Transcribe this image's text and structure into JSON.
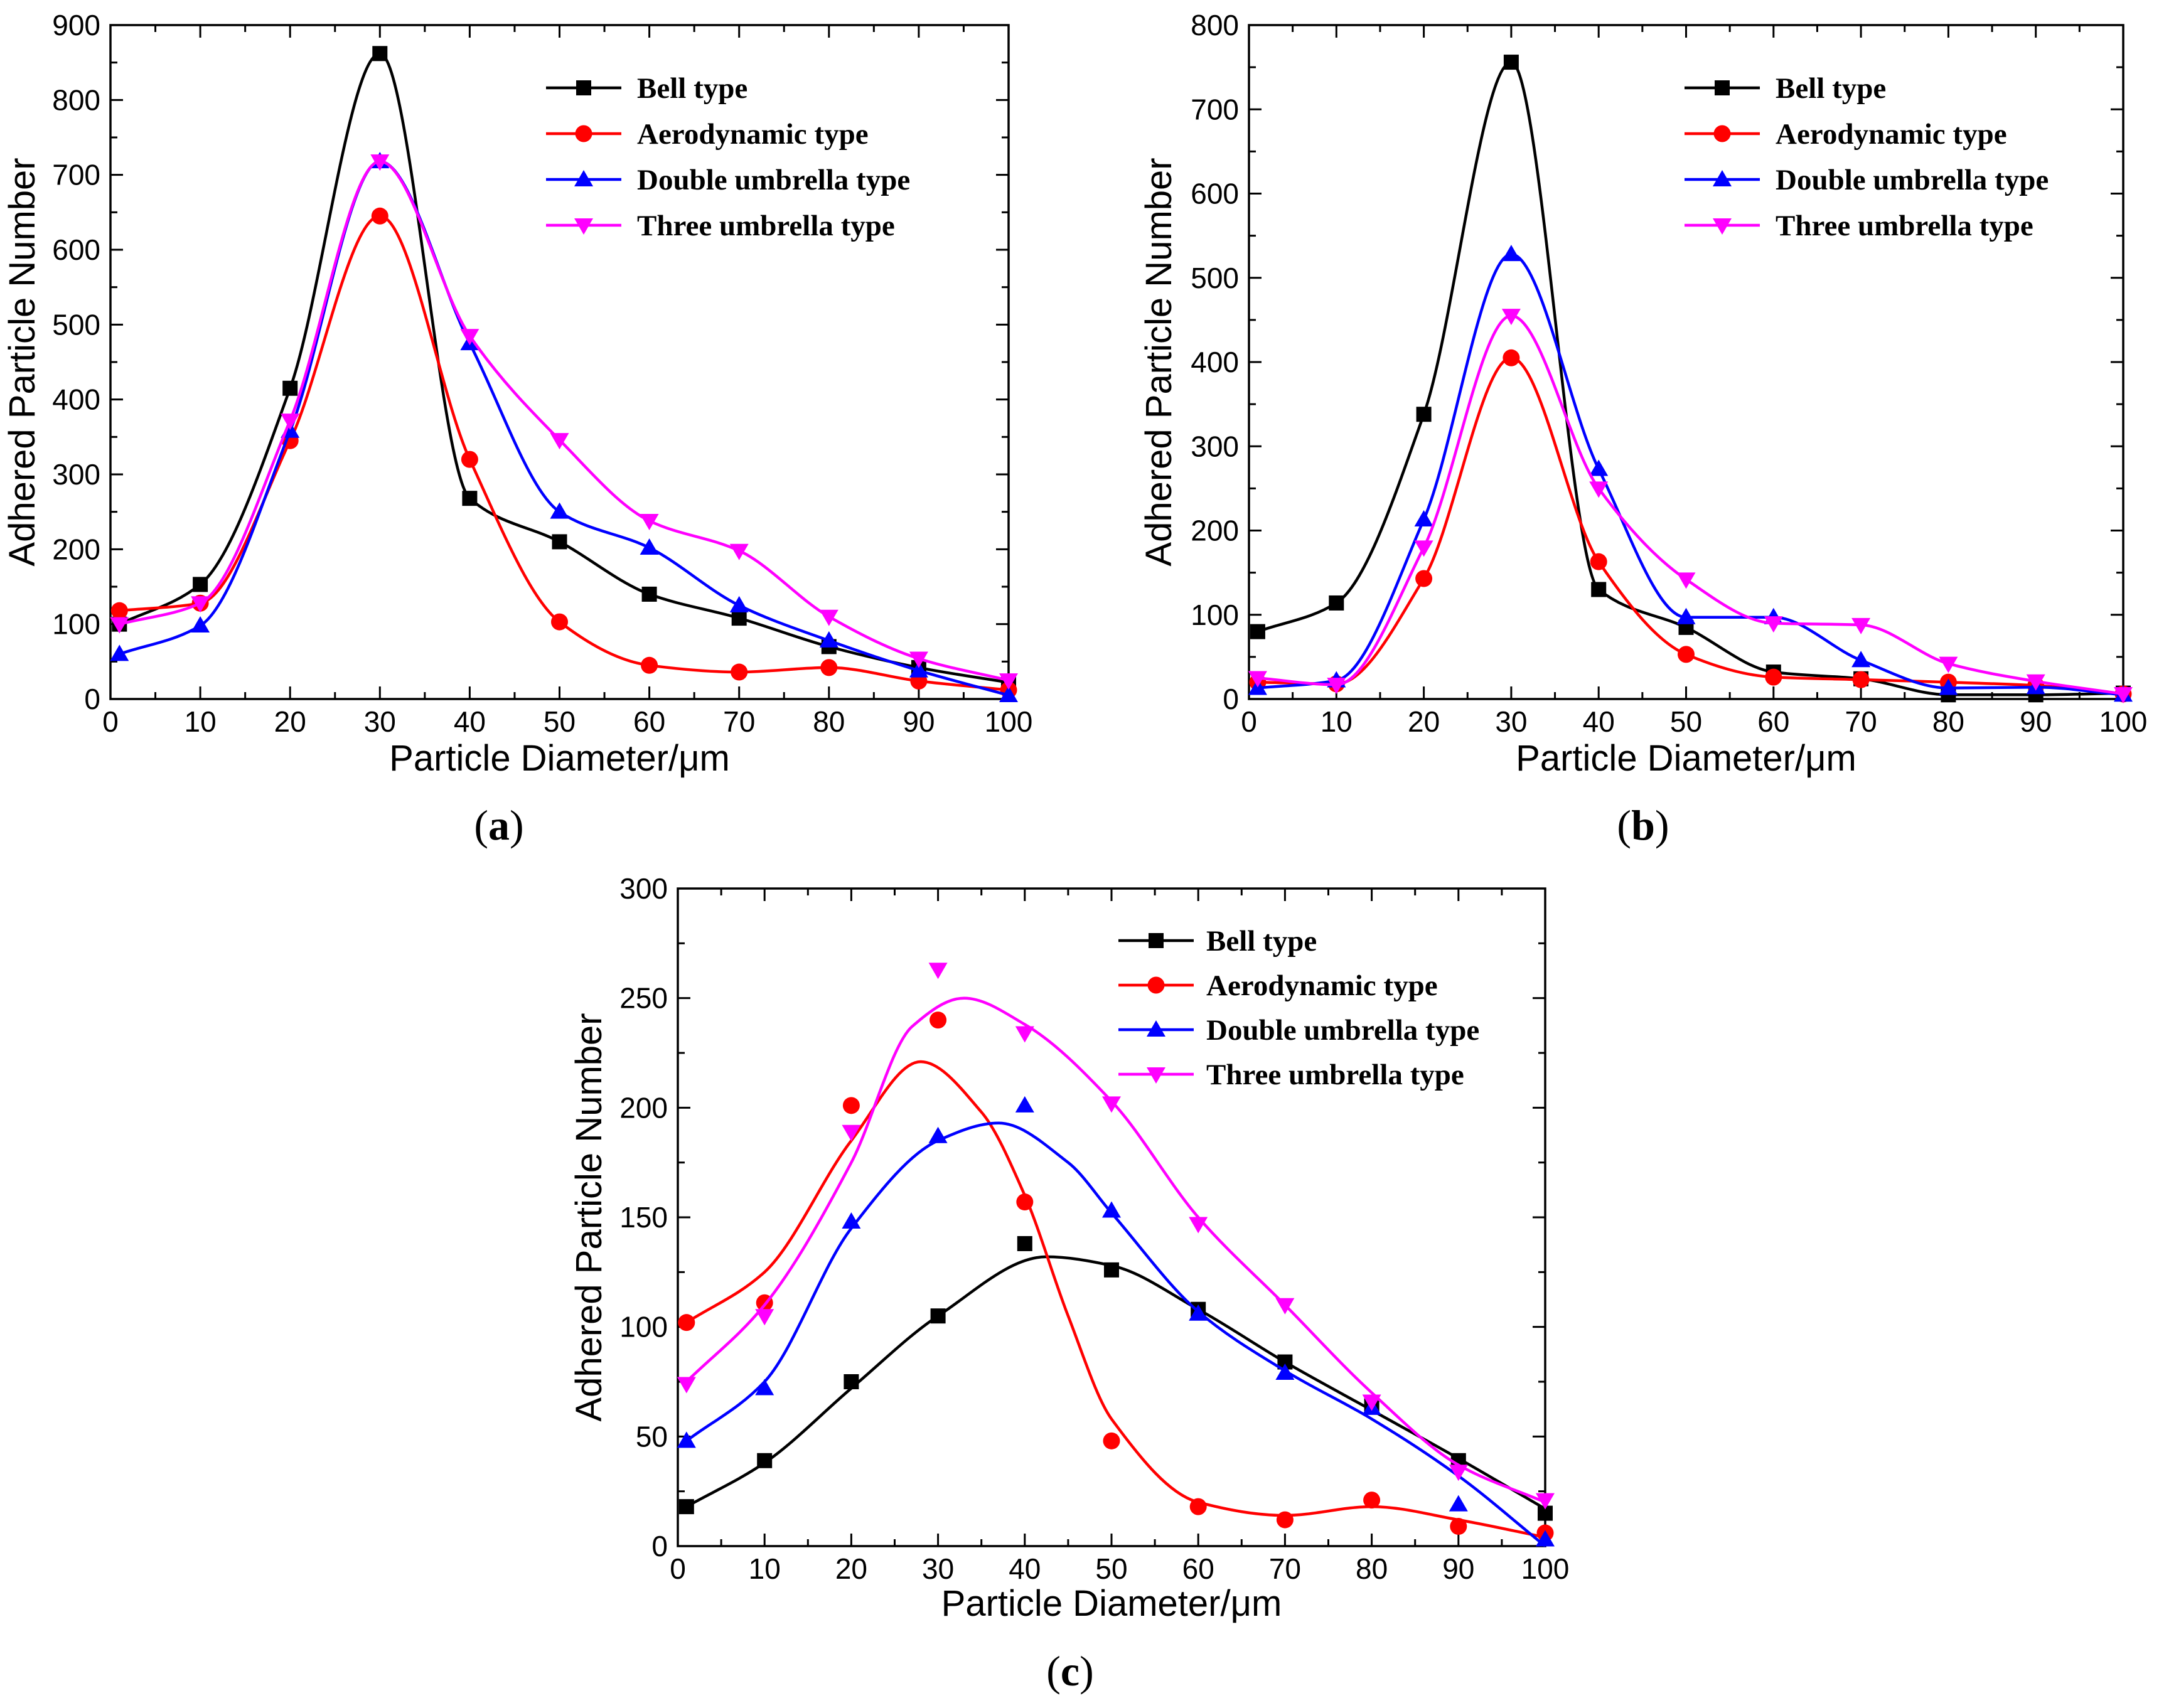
{
  "figure": {
    "colors": {
      "bell": "#000000",
      "aero": "#ff0000",
      "double": "#0000ff",
      "three": "#ff00ff"
    }
  },
  "chart_data": [
    {
      "panel": "a",
      "panel_label": {
        "open": "(",
        "letter": "a",
        "close": ")"
      },
      "type": "line",
      "smooth": true,
      "xlabel": "Particle Diameter/μm",
      "ylabel": "Adhered Particle Number",
      "xlim": [
        0,
        100
      ],
      "ylim": [
        0,
        900
      ],
      "xticks": [
        0,
        10,
        20,
        30,
        40,
        50,
        60,
        70,
        80,
        90,
        100
      ],
      "yticks": [
        0,
        100,
        200,
        300,
        400,
        500,
        600,
        700,
        800,
        900
      ],
      "legend_position": "top-right",
      "x": [
        1,
        10,
        20,
        30,
        40,
        50,
        60,
        70,
        80,
        90,
        100
      ],
      "series": [
        {
          "key": "bell",
          "name": "Bell type",
          "marker": "square",
          "values": [
            100,
            153,
            415,
            862,
            268,
            210,
            140,
            108,
            70,
            42,
            22
          ]
        },
        {
          "key": "aero",
          "name": "Aerodynamic type",
          "marker": "circle",
          "values": [
            118,
            128,
            345,
            645,
            320,
            103,
            45,
            36,
            42,
            24,
            12
          ]
        },
        {
          "key": "double",
          "name": "Double umbrella type",
          "marker": "triangle-up",
          "values": [
            60,
            98,
            358,
            718,
            475,
            250,
            202,
            125,
            78,
            38,
            5
          ]
        },
        {
          "key": "three",
          "name": "Three umbrella type",
          "marker": "triangle-down",
          "values": [
            100,
            128,
            372,
            718,
            485,
            346,
            238,
            198,
            110,
            54,
            25
          ]
        }
      ]
    },
    {
      "panel": "b",
      "panel_label": {
        "open": "(",
        "letter": "b",
        "close": ")"
      },
      "type": "line",
      "smooth": true,
      "xlabel": "Particle Diameter/μm",
      "ylabel": "Adhered Particle Number",
      "xlim": [
        0,
        100
      ],
      "ylim": [
        0,
        800
      ],
      "xticks": [
        0,
        10,
        20,
        30,
        40,
        50,
        60,
        70,
        80,
        90,
        100
      ],
      "yticks": [
        0,
        100,
        200,
        300,
        400,
        500,
        600,
        700,
        800
      ],
      "legend_position": "top-right",
      "x": [
        1,
        10,
        20,
        30,
        40,
        50,
        60,
        70,
        80,
        90,
        100
      ],
      "series": [
        {
          "key": "bell",
          "name": "Bell type",
          "marker": "square",
          "values": [
            80,
            114,
            338,
            756,
            130,
            85,
            32,
            24,
            5,
            5,
            7
          ]
        },
        {
          "key": "aero",
          "name": "Aerodynamic type",
          "marker": "circle",
          "values": [
            20,
            18,
            143,
            405,
            163,
            53,
            26,
            23,
            20,
            16,
            6
          ]
        },
        {
          "key": "double",
          "name": "Double umbrella type",
          "marker": "triangle-up",
          "values": [
            13,
            22,
            213,
            528,
            273,
            97,
            97,
            46,
            13,
            14,
            5
          ]
        },
        {
          "key": "three",
          "name": "Three umbrella type",
          "marker": "triangle-down",
          "values": [
            25,
            17,
            180,
            455,
            250,
            142,
            90,
            88,
            42,
            21,
            6
          ]
        }
      ]
    },
    {
      "panel": "c",
      "panel_label": {
        "open": "(",
        "letter": "c",
        "close": ")"
      },
      "type": "scatter",
      "fit": "smooth-curve",
      "xlabel": "Particle Diameter/μm",
      "ylabel": "Adhered Particle Number",
      "xlim": [
        0,
        100
      ],
      "ylim": [
        0,
        300
      ],
      "xticks": [
        0,
        10,
        20,
        30,
        40,
        50,
        60,
        70,
        80,
        90,
        100
      ],
      "yticks": [
        0,
        50,
        100,
        150,
        200,
        250,
        300
      ],
      "legend_position": "top-right",
      "x": [
        1,
        10,
        20,
        30,
        40,
        50,
        60,
        70,
        80,
        90,
        100
      ],
      "series": [
        {
          "key": "bell",
          "name": "Bell type",
          "marker": "square",
          "values": [
            18,
            39,
            75,
            105,
            138,
            126,
            108,
            84,
            64,
            39,
            15
          ],
          "fit_x": [
            1,
            10,
            20,
            30,
            42.5,
            50,
            60,
            70,
            80,
            90,
            100
          ],
          "fit_y": [
            18,
            38,
            72,
            105,
            132,
            128,
            108,
            84,
            62,
            40,
            17
          ]
        },
        {
          "key": "aero",
          "name": "Aerodynamic type",
          "marker": "circle",
          "values": [
            102,
            111,
            201,
            240,
            157,
            48,
            18,
            12,
            21,
            9,
            6
          ],
          "fit_x": [
            1,
            10,
            20,
            28,
            35,
            40,
            45,
            50,
            60,
            70,
            80,
            90,
            100
          ],
          "fit_y": [
            102,
            125,
            185,
            221,
            198,
            160,
            105,
            58,
            20,
            14,
            18,
            12,
            4
          ]
        },
        {
          "key": "double",
          "name": "Double umbrella type",
          "marker": "triangle-up",
          "values": [
            48,
            72,
            148,
            187,
            201,
            153,
            106,
            79,
            63,
            19,
            3
          ],
          "fit_x": [
            1,
            10,
            20,
            30,
            37,
            45,
            50,
            60,
            70,
            80,
            90,
            100
          ],
          "fit_y": [
            48,
            75,
            145,
            185,
            193,
            175,
            152,
            107,
            80,
            58,
            32,
            0
          ]
        },
        {
          "key": "three",
          "name": "Three umbrella type",
          "marker": "triangle-down",
          "values": [
            74,
            105,
            189,
            263,
            234,
            202,
            147,
            110,
            66,
            34,
            21
          ],
          "fit_x": [
            1,
            10,
            20,
            27,
            33,
            40,
            50,
            60,
            70,
            80,
            90,
            100
          ],
          "fit_y": [
            75,
            110,
            175,
            237,
            250,
            238,
            203,
            150,
            110,
            70,
            37,
            20
          ]
        }
      ]
    }
  ]
}
